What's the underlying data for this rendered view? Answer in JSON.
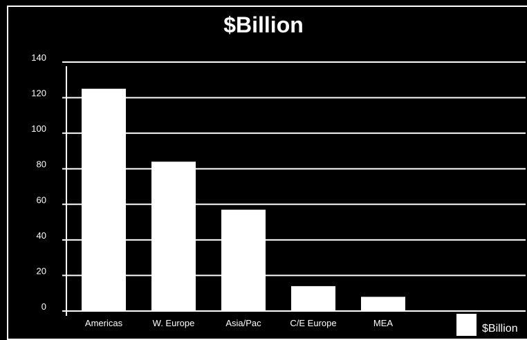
{
  "chart_data": {
    "type": "bar",
    "title": "$Billion",
    "xlabel": "",
    "ylabel": "",
    "categories": [
      "Americas",
      "W. Europe",
      "Asia/Pac",
      "C/E Europe",
      "MEA"
    ],
    "series": [
      {
        "name": "$Billion",
        "values": [
          125,
          84,
          57,
          14,
          8
        ]
      }
    ],
    "ylim": [
      0,
      140
    ],
    "yticks": [
      0,
      20,
      40,
      60,
      80,
      100,
      120,
      140
    ],
    "grid": true,
    "legend": "bottom-right",
    "colors": {
      "background": "#000000",
      "bar": "#ffffff",
      "text": "#ffffff",
      "grid": "#ffffff"
    }
  }
}
